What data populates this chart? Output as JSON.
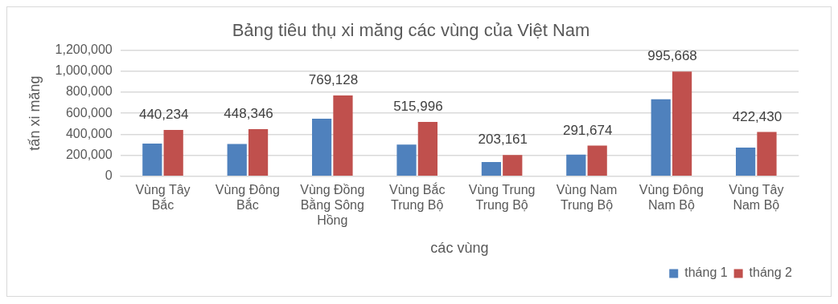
{
  "chart_data": {
    "type": "bar",
    "title": "Bảng tiêu thụ xi măng các vùng của Việt Nam",
    "xlabel": "các vùng",
    "ylabel": "tấn xi măng",
    "categories": [
      "Vùng Tây Bắc",
      "Vùng Đông Bắc",
      "Vùng Đồng Bằng Sông Hồng",
      "Vùng Bắc Trung Bộ",
      "Vùng Trung Trung Bộ",
      "Vùng Nam Trung Bộ",
      "Vùng Đông Nam Bộ",
      "Vùng Tây Nam Bộ"
    ],
    "series": [
      {
        "name": "tháng 1",
        "color": "#4f81bd",
        "values": [
          312000,
          307000,
          547000,
          302000,
          135000,
          207000,
          732000,
          272000
        ]
      },
      {
        "name": "tháng 2",
        "color": "#c0504d",
        "values": [
          440234,
          448346,
          769128,
          515996,
          203161,
          291674,
          995668,
          422430
        ],
        "value_labels": [
          "440,234",
          "448,346",
          "769,128",
          "515,996",
          "203,161",
          "291,674",
          "995,668",
          "422,430"
        ]
      }
    ],
    "ylim": [
      0,
      1200000
    ],
    "yticks": [
      {
        "value": 0,
        "label": "0"
      },
      {
        "value": 200000,
        "label": "200,000"
      },
      {
        "value": 400000,
        "label": "400,000"
      },
      {
        "value": 600000,
        "label": "600,000"
      },
      {
        "value": 800000,
        "label": "800,000"
      },
      {
        "value": 1000000,
        "label": "1,000,000"
      },
      {
        "value": 1200000,
        "label": "1,200,000"
      }
    ],
    "grid": "y",
    "legend": "bottom right"
  }
}
